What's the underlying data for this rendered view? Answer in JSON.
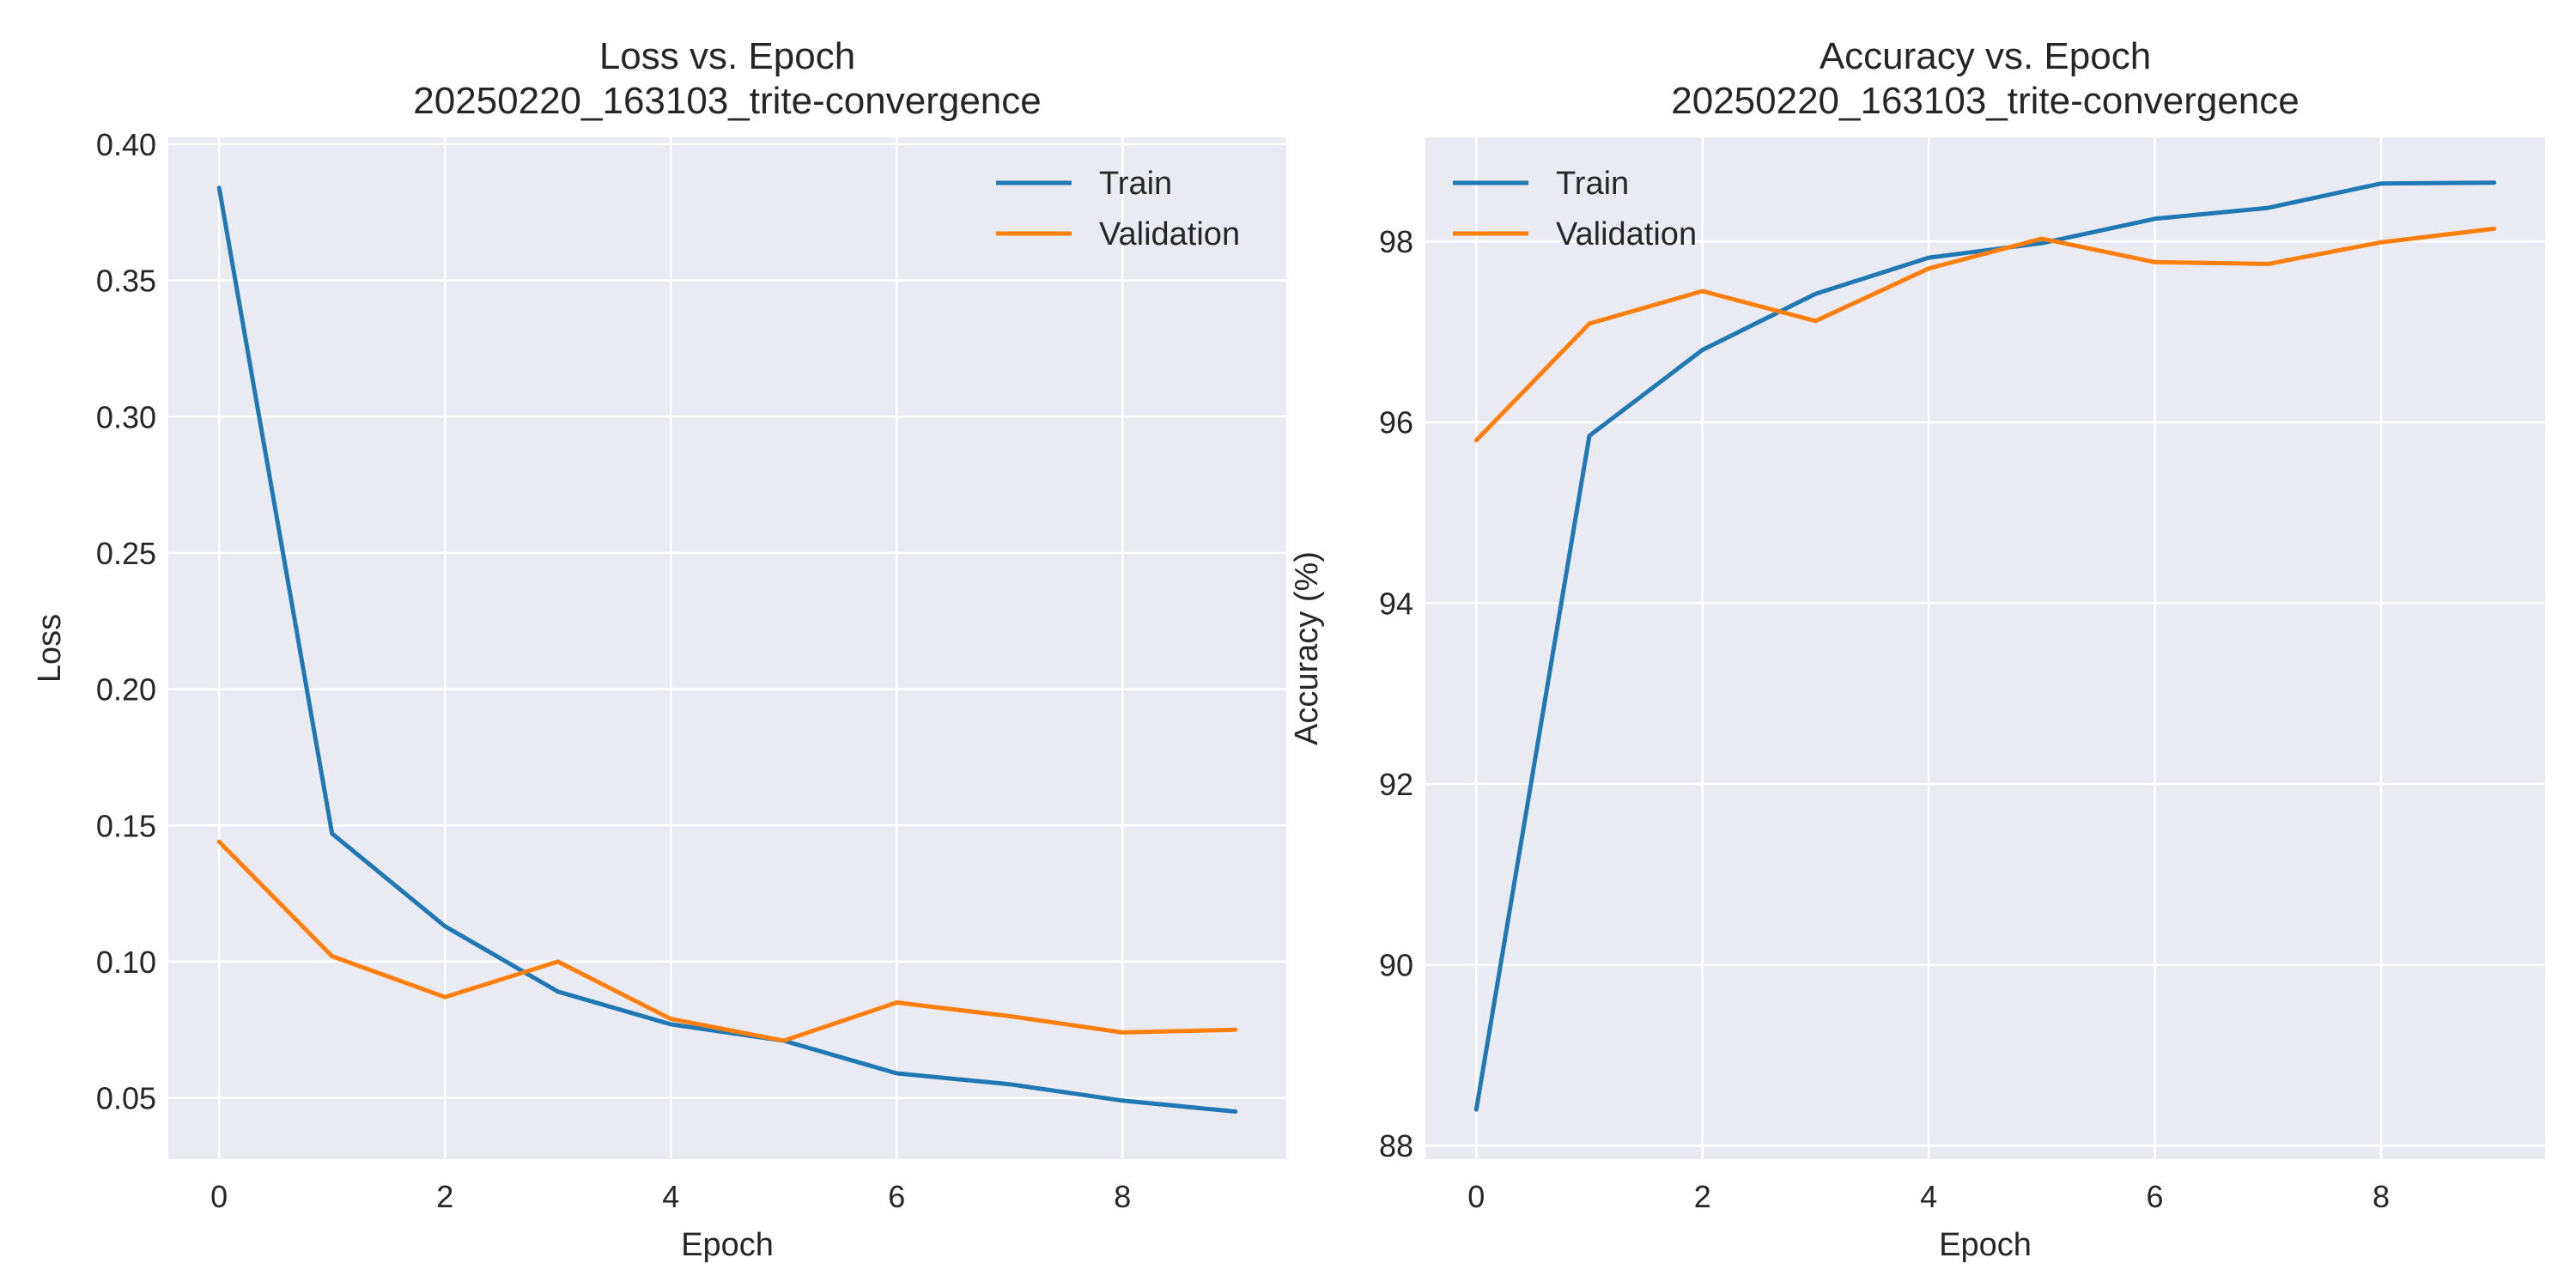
{
  "chart_data": [
    {
      "type": "line",
      "title_line1": "Loss vs. Epoch",
      "title_line2": "20250220_163103_trite-convergence",
      "xlabel": "Epoch",
      "ylabel": "Loss",
      "xlim": [
        -0.45,
        9.45
      ],
      "ylim": [
        0.0275,
        0.4025
      ],
      "xticks": [
        0,
        2,
        4,
        6,
        8
      ],
      "xtick_labels": [
        "0",
        "2",
        "4",
        "6",
        "8"
      ],
      "yticks": [
        0.05,
        0.1,
        0.15,
        0.2,
        0.25,
        0.3,
        0.35,
        0.4
      ],
      "ytick_labels": [
        "0.05",
        "0.10",
        "0.15",
        "0.20",
        "0.25",
        "0.30",
        "0.35",
        "0.40"
      ],
      "grid": true,
      "legend_position": "top-right",
      "x": [
        0,
        1,
        2,
        3,
        4,
        5,
        6,
        7,
        8,
        9
      ],
      "series": [
        {
          "name": "Train",
          "color": "#1f77b4",
          "values": [
            0.384,
            0.147,
            0.113,
            0.089,
            0.077,
            0.071,
            0.059,
            0.055,
            0.049,
            0.045
          ]
        },
        {
          "name": "Validation",
          "color": "#ff7f0e",
          "values": [
            0.144,
            0.102,
            0.087,
            0.1,
            0.079,
            0.071,
            0.085,
            0.08,
            0.074,
            0.075
          ]
        }
      ]
    },
    {
      "type": "line",
      "title_line1": "Accuracy vs. Epoch",
      "title_line2": "20250220_163103_trite-convergence",
      "xlabel": "Epoch",
      "ylabel": "Accuracy (%)",
      "xlim": [
        -0.45,
        9.45
      ],
      "ylim": [
        87.85,
        99.15
      ],
      "xticks": [
        0,
        2,
        4,
        6,
        8
      ],
      "xtick_labels": [
        "0",
        "2",
        "4",
        "6",
        "8"
      ],
      "yticks": [
        88,
        90,
        92,
        94,
        96,
        98
      ],
      "ytick_labels": [
        "88",
        "90",
        "92",
        "94",
        "96",
        "98"
      ],
      "grid": true,
      "legend_position": "top-left",
      "x": [
        0,
        1,
        2,
        3,
        4,
        5,
        6,
        7,
        8,
        9
      ],
      "series": [
        {
          "name": "Train",
          "color": "#1f77b4",
          "values": [
            88.4,
            95.85,
            96.8,
            97.42,
            97.82,
            97.98,
            98.25,
            98.37,
            98.64,
            98.65
          ]
        },
        {
          "name": "Validation",
          "color": "#ff7f0e",
          "values": [
            95.8,
            97.09,
            97.45,
            97.12,
            97.7,
            98.03,
            97.77,
            97.75,
            97.99,
            98.14
          ]
        }
      ]
    }
  ]
}
